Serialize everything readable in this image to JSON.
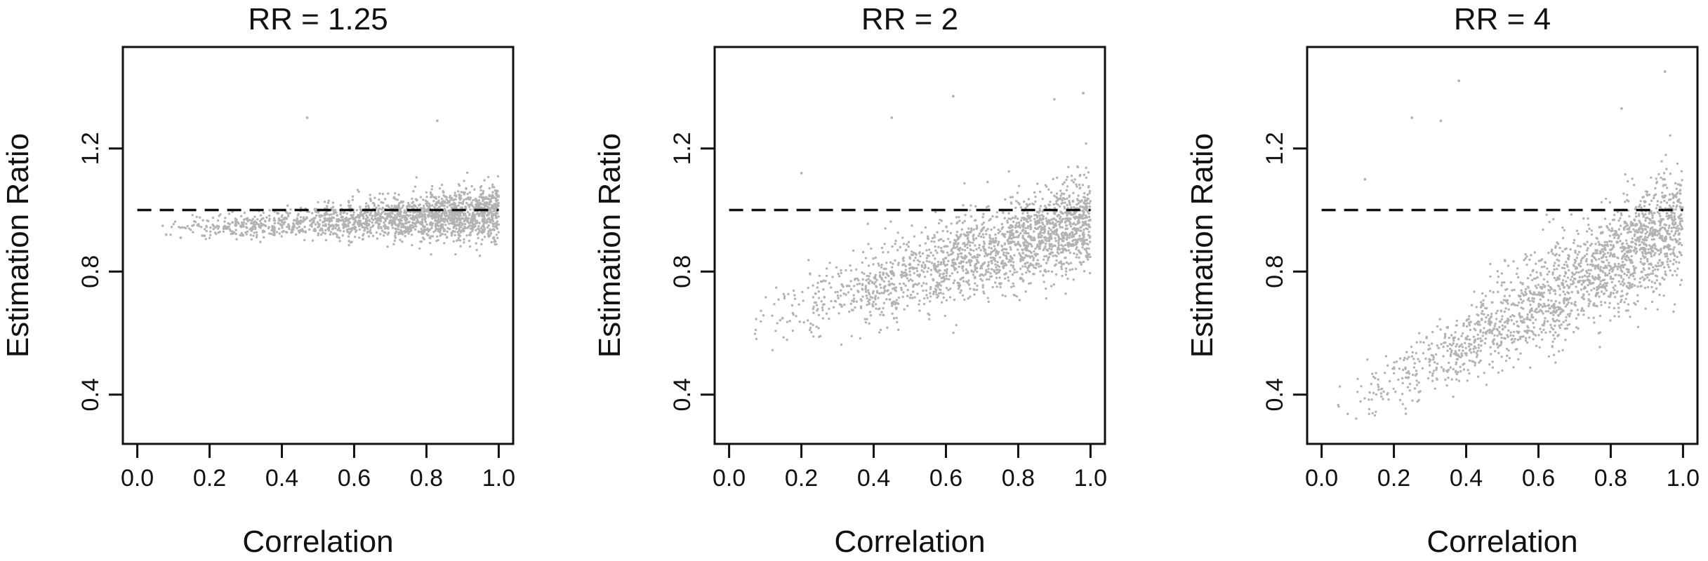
{
  "chart_data": [
    {
      "type": "scatter",
      "title": "RR = 1.25",
      "xlabel": "Correlation",
      "ylabel": "Estimation Ratio",
      "xlim": [
        -0.04,
        1.04
      ],
      "ylim": [
        0.24,
        1.53
      ],
      "xticks": [
        0.0,
        0.2,
        0.4,
        0.6,
        0.8,
        1.0
      ],
      "xtick_labels": [
        "0.0",
        "0.2",
        "0.4",
        "0.6",
        "0.8",
        "1.0"
      ],
      "yticks": [
        0.4,
        0.8,
        1.2
      ],
      "ytick_labels": [
        "0.4",
        "0.8",
        "1.2"
      ],
      "reference_line": {
        "y": 1.0,
        "style": "dashed",
        "color": "#111111"
      },
      "point_color": "#b3b3b3",
      "grid": false,
      "legend": "none",
      "point_cloud": {
        "x_range": [
          0.05,
          1.0
        ],
        "y_center_at_x0": 0.935,
        "y_center_at_x1": 0.99,
        "spread_at_x0": 0.012,
        "spread_at_x1": 0.045,
        "density": "increasing toward x=1"
      },
      "outliers": [
        {
          "x": 0.47,
          "y": 1.3
        },
        {
          "x": 0.83,
          "y": 1.29
        },
        {
          "x": 0.12,
          "y": 0.91
        },
        {
          "x": 0.08,
          "y": 0.92
        }
      ]
    },
    {
      "type": "scatter",
      "title": "RR = 2",
      "xlabel": "Correlation",
      "ylabel": "Estimation Ratio",
      "xlim": [
        -0.04,
        1.04
      ],
      "ylim": [
        0.24,
        1.53
      ],
      "xticks": [
        0.0,
        0.2,
        0.4,
        0.6,
        0.8,
        1.0
      ],
      "xtick_labels": [
        "0.0",
        "0.2",
        "0.4",
        "0.6",
        "0.8",
        "1.0"
      ],
      "yticks": [
        0.4,
        0.8,
        1.2
      ],
      "ytick_labels": [
        "0.4",
        "0.8",
        "1.2"
      ],
      "reference_line": {
        "y": 1.0,
        "style": "dashed",
        "color": "#111111"
      },
      "point_color": "#b3b3b3",
      "grid": false,
      "legend": "none",
      "point_cloud": {
        "x_range": [
          0.02,
          1.0
        ],
        "y_center_at_x0": 0.62,
        "y_center_at_x1": 0.97,
        "spread_at_x0": 0.05,
        "spread_at_x1": 0.08,
        "density": "increasing toward x=1"
      },
      "outliers": [
        {
          "x": 0.45,
          "y": 1.3
        },
        {
          "x": 0.62,
          "y": 1.37
        },
        {
          "x": 0.9,
          "y": 1.36
        },
        {
          "x": 0.98,
          "y": 1.38
        },
        {
          "x": 0.2,
          "y": 1.12
        }
      ]
    },
    {
      "type": "scatter",
      "title": "RR = 4",
      "xlabel": "Correlation",
      "ylabel": "Estimation Ratio",
      "xlim": [
        -0.04,
        1.04
      ],
      "ylim": [
        0.24,
        1.53
      ],
      "xticks": [
        0.0,
        0.2,
        0.4,
        0.6,
        0.8,
        1.0
      ],
      "xtick_labels": [
        "0.0",
        "0.2",
        "0.4",
        "0.6",
        "0.8",
        "1.0"
      ],
      "yticks": [
        0.4,
        0.8,
        1.2
      ],
      "ytick_labels": [
        "0.4",
        "0.8",
        "1.2"
      ],
      "reference_line": {
        "y": 1.0,
        "style": "dashed",
        "color": "#111111"
      },
      "point_color": "#b3b3b3",
      "grid": false,
      "legend": "none",
      "point_cloud": {
        "x_range": [
          0.02,
          1.0
        ],
        "y_center_at_x0": 0.33,
        "y_center_at_x1": 0.96,
        "spread_at_x0": 0.04,
        "spread_at_x1": 0.1,
        "density": "increasing toward x=1"
      },
      "outliers": [
        {
          "x": 0.38,
          "y": 1.42
        },
        {
          "x": 0.25,
          "y": 1.3
        },
        {
          "x": 0.33,
          "y": 1.29
        },
        {
          "x": 0.95,
          "y": 1.45
        },
        {
          "x": 0.83,
          "y": 1.33
        },
        {
          "x": 0.12,
          "y": 1.1
        }
      ]
    }
  ]
}
